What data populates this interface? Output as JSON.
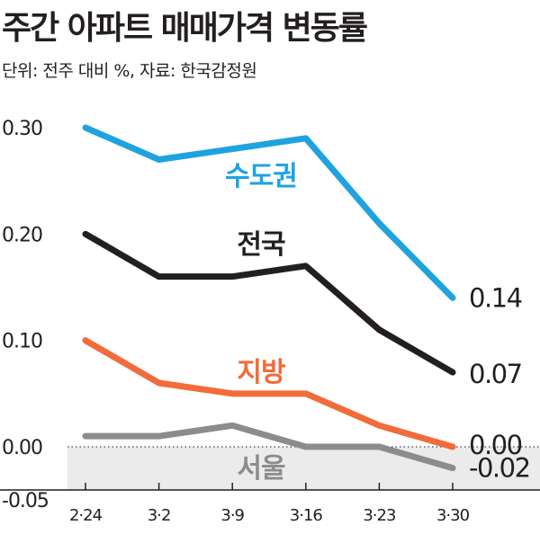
{
  "header": {
    "title": "주간 아파트 매매가격 변동률",
    "subtitle": "단위: 전주 대비 %, 자료: 한국감정원"
  },
  "chart_data": {
    "type": "line",
    "title": "주간 아파트 매매가격 변동률",
    "ylabel": "",
    "xlabel": "",
    "categories": [
      "2·24",
      "3·2",
      "3·9",
      "3·16",
      "3·23",
      "3·30"
    ],
    "ylim": [
      -0.05,
      0.3
    ],
    "yticks": [
      0.3,
      0.2,
      0.1,
      0.0,
      -0.05
    ],
    "ytick_labels": [
      "0.30",
      "0.20",
      "0.10",
      "0.00",
      "-0.05"
    ],
    "grid": false,
    "negative_region_shaded": true,
    "zero_line_style": "dotted",
    "series": [
      {
        "name": "수도권",
        "color": "#1fa3e0",
        "values": [
          0.3,
          0.27,
          0.28,
          0.29,
          0.21,
          0.14
        ],
        "end_label": "0.14"
      },
      {
        "name": "전국",
        "color": "#231f20",
        "values": [
          0.2,
          0.16,
          0.16,
          0.17,
          0.11,
          0.07
        ],
        "end_label": "0.07"
      },
      {
        "name": "지방",
        "color": "#f26b3a",
        "values": [
          0.1,
          0.06,
          0.05,
          0.05,
          0.02,
          0.0
        ],
        "end_label": "0.00"
      },
      {
        "name": "서울",
        "color": "#8c8c8c",
        "values": [
          0.01,
          0.01,
          0.02,
          0.0,
          0.0,
          -0.02
        ],
        "end_label": "-0.02"
      }
    ]
  }
}
